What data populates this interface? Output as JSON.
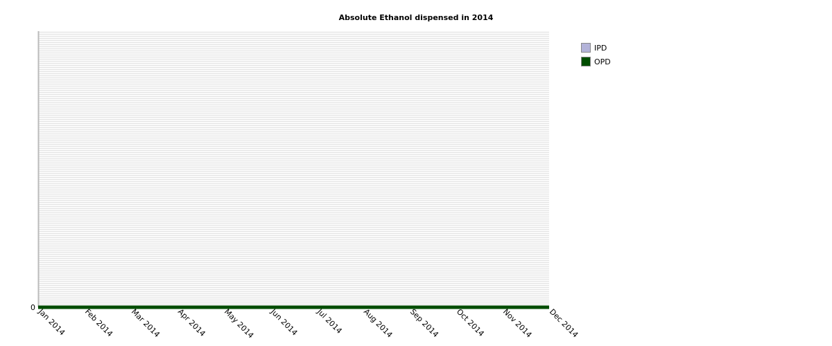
{
  "chart_data": {
    "type": "area",
    "title": "Absolute Ethanol dispensed in 2014",
    "xlabel": "",
    "ylabel": "",
    "x": [
      "Jan 2014",
      "Feb 2014",
      "Mar 2014",
      "Apr 2014",
      "May 2014",
      "Jun 2014",
      "Jul 2014",
      "Aug 2014",
      "Sep 2014",
      "Oct 2014",
      "Nov 2014",
      "Dec 2014"
    ],
    "y_ticks": [
      "0"
    ],
    "ylim": [
      0,
      1
    ],
    "grid": true,
    "legend_position": "top-right",
    "series": [
      {
        "name": "IPD",
        "color": "#b3b3d9",
        "values": [
          0,
          0,
          0,
          0,
          0,
          0,
          0,
          0,
          0,
          0,
          0,
          0
        ]
      },
      {
        "name": "OPD",
        "color": "#004d00",
        "values": [
          0,
          0,
          0,
          0,
          0,
          0,
          0,
          0,
          0,
          0,
          0,
          0
        ]
      }
    ]
  }
}
